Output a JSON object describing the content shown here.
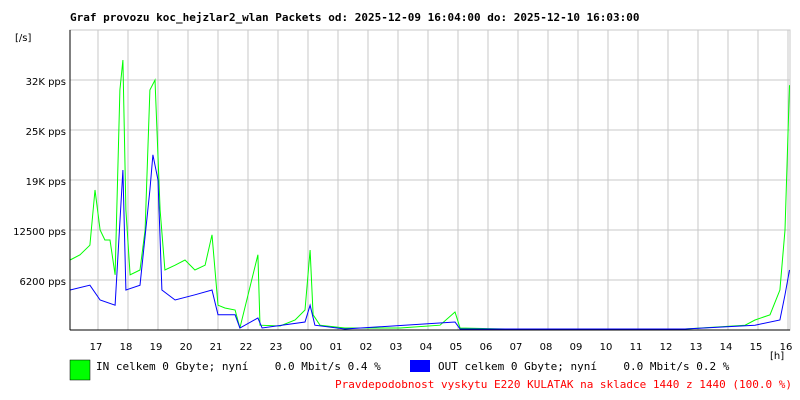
{
  "chart_data": {
    "type": "line",
    "title": "Graf provozu koc_hejzlar2_wlan Packets od: 2025-12-09 16:04:00 do: 2025-12-10 16:03:00",
    "y_label": "[/s]",
    "x_label": "[h]",
    "xlim": [
      16.067,
      40.067
    ],
    "xticks": [
      {
        "value": 17,
        "label": "17"
      },
      {
        "value": 18,
        "label": "18"
      },
      {
        "value": 19,
        "label": "19"
      },
      {
        "value": 20,
        "label": "20"
      },
      {
        "value": 21,
        "label": "21"
      },
      {
        "value": 22,
        "label": "22"
      },
      {
        "value": 23,
        "label": "23"
      },
      {
        "value": 24,
        "label": "00"
      },
      {
        "value": 25,
        "label": "01"
      },
      {
        "value": 26,
        "label": "02"
      },
      {
        "value": 27,
        "label": "03"
      },
      {
        "value": 28,
        "label": "04"
      },
      {
        "value": 29,
        "label": "05"
      },
      {
        "value": 30,
        "label": "06"
      },
      {
        "value": 31,
        "label": "07"
      },
      {
        "value": 32,
        "label": "08"
      },
      {
        "value": 33,
        "label": "09"
      },
      {
        "value": 34,
        "label": "10"
      },
      {
        "value": 35,
        "label": "11"
      },
      {
        "value": 36,
        "label": "12"
      },
      {
        "value": 37,
        "label": "13"
      },
      {
        "value": 38,
        "label": "14"
      },
      {
        "value": 39,
        "label": "15"
      },
      {
        "value": 40,
        "label": "16"
      }
    ],
    "ylim": [
      0,
      37500
    ],
    "yticks": [
      {
        "value": 6250,
        "label": "6200 pps"
      },
      {
        "value": 12500,
        "label": "12500 pps"
      },
      {
        "value": 18750,
        "label": "19K pps"
      },
      {
        "value": 25000,
        "label": "25K pps"
      },
      {
        "value": 31250,
        "label": "32K pps"
      }
    ],
    "grid": true,
    "series": [
      {
        "name": "IN celkem 0 Gbyte; nyní    0.0 Mbit/s 0.4 %",
        "color": "#00ff00",
        "x": [
          16.07,
          16.4,
          16.73,
          16.9,
          17.07,
          17.23,
          17.4,
          17.57,
          17.73,
          17.83,
          17.93,
          18.07,
          18.4,
          18.57,
          18.73,
          18.9,
          19.07,
          19.23,
          19.57,
          19.9,
          20.23,
          20.57,
          20.8,
          21.0,
          21.23,
          21.57,
          21.73,
          22.33,
          22.4,
          23.07,
          23.57,
          23.9,
          24.07,
          24.17,
          24.4,
          25.23,
          27.07,
          28.4,
          28.9,
          29.07,
          30.57,
          33.23,
          36.57,
          38.57,
          38.9,
          39.4,
          39.73,
          39.9,
          40.05
        ],
        "values": [
          8750,
          9400,
          10600,
          17500,
          12500,
          11250,
          11250,
          6900,
          30000,
          33750,
          15000,
          6900,
          7500,
          12500,
          30000,
          31250,
          15000,
          7500,
          8100,
          8750,
          7500,
          8100,
          11900,
          3100,
          2750,
          2500,
          250,
          9400,
          600,
          500,
          1250,
          2500,
          10000,
          1900,
          600,
          250,
          250,
          600,
          2250,
          250,
          125,
          125,
          125,
          600,
          1250,
          1900,
          5000,
          12500,
          30600
        ]
      },
      {
        "name": "OUT celkem 0 Gbyte; nyní    0.0 Mbit/s 0.2 %",
        "color": "#0000ff",
        "x": [
          16.07,
          16.73,
          17.07,
          17.57,
          17.83,
          17.93,
          18.4,
          18.73,
          18.83,
          19.0,
          19.13,
          19.57,
          20.23,
          20.8,
          21.0,
          21.57,
          21.73,
          22.33,
          22.47,
          23.9,
          24.07,
          24.23,
          25.23,
          28.9,
          29.07,
          36.57,
          38.9,
          39.73,
          39.9,
          40.05
        ],
        "values": [
          5000,
          5600,
          3750,
          3100,
          20000,
          5000,
          5600,
          17500,
          21900,
          18750,
          5000,
          3750,
          4400,
          5000,
          1900,
          1900,
          250,
          1500,
          250,
          1000,
          3100,
          600,
          125,
          1000,
          125,
          125,
          600,
          1250,
          4400,
          7500
        ]
      }
    ],
    "footer": "Pravdepodobnost vyskytu E220 KULATAK na skladce 1440 z 1440 (100.0 %)"
  }
}
